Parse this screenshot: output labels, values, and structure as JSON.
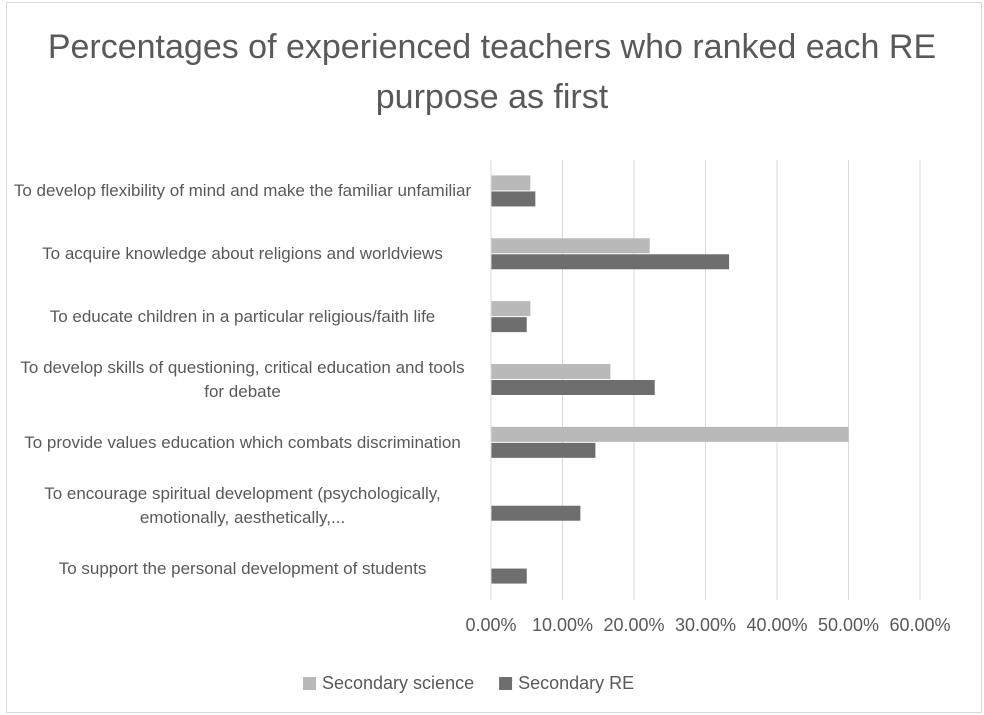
{
  "chart_data": {
    "type": "bar",
    "orientation": "horizontal",
    "title": "Percentages of experienced teachers who ranked each RE purpose as first",
    "categories": [
      "To develop flexibility of mind and make the familiar unfamiliar",
      "To acquire knowledge about religions and worldviews",
      "To educate children in a particular religious/faith life",
      "To develop skills of questioning, critical education and tools for debate",
      "To provide values education which combats discrimination",
      "To encourage spiritual development (psychologically, emotionally, aesthetically,...",
      "To support the personal development of students"
    ],
    "series": [
      {
        "name": "Secondary science",
        "color": "#b9b9b9",
        "values": [
          5.5,
          22.2,
          5.5,
          16.7,
          50,
          0,
          0
        ]
      },
      {
        "name": "Secondary RE",
        "color": "#6e6e6e",
        "values": [
          6.2,
          33.3,
          5.0,
          22.9,
          14.6,
          12.5,
          5.0
        ]
      }
    ],
    "xlim": [
      0,
      60
    ],
    "xticks": [
      {
        "value": 0,
        "label": "0.00%"
      },
      {
        "value": 10,
        "label": "10.00%"
      },
      {
        "value": 20,
        "label": "20.00%"
      },
      {
        "value": 30,
        "label": "30.00%"
      },
      {
        "value": 40,
        "label": "40.00%"
      },
      {
        "value": 50,
        "label": "50.00%"
      },
      {
        "value": 60,
        "label": "60.00%"
      }
    ],
    "grid": true,
    "legend": "bottom"
  }
}
